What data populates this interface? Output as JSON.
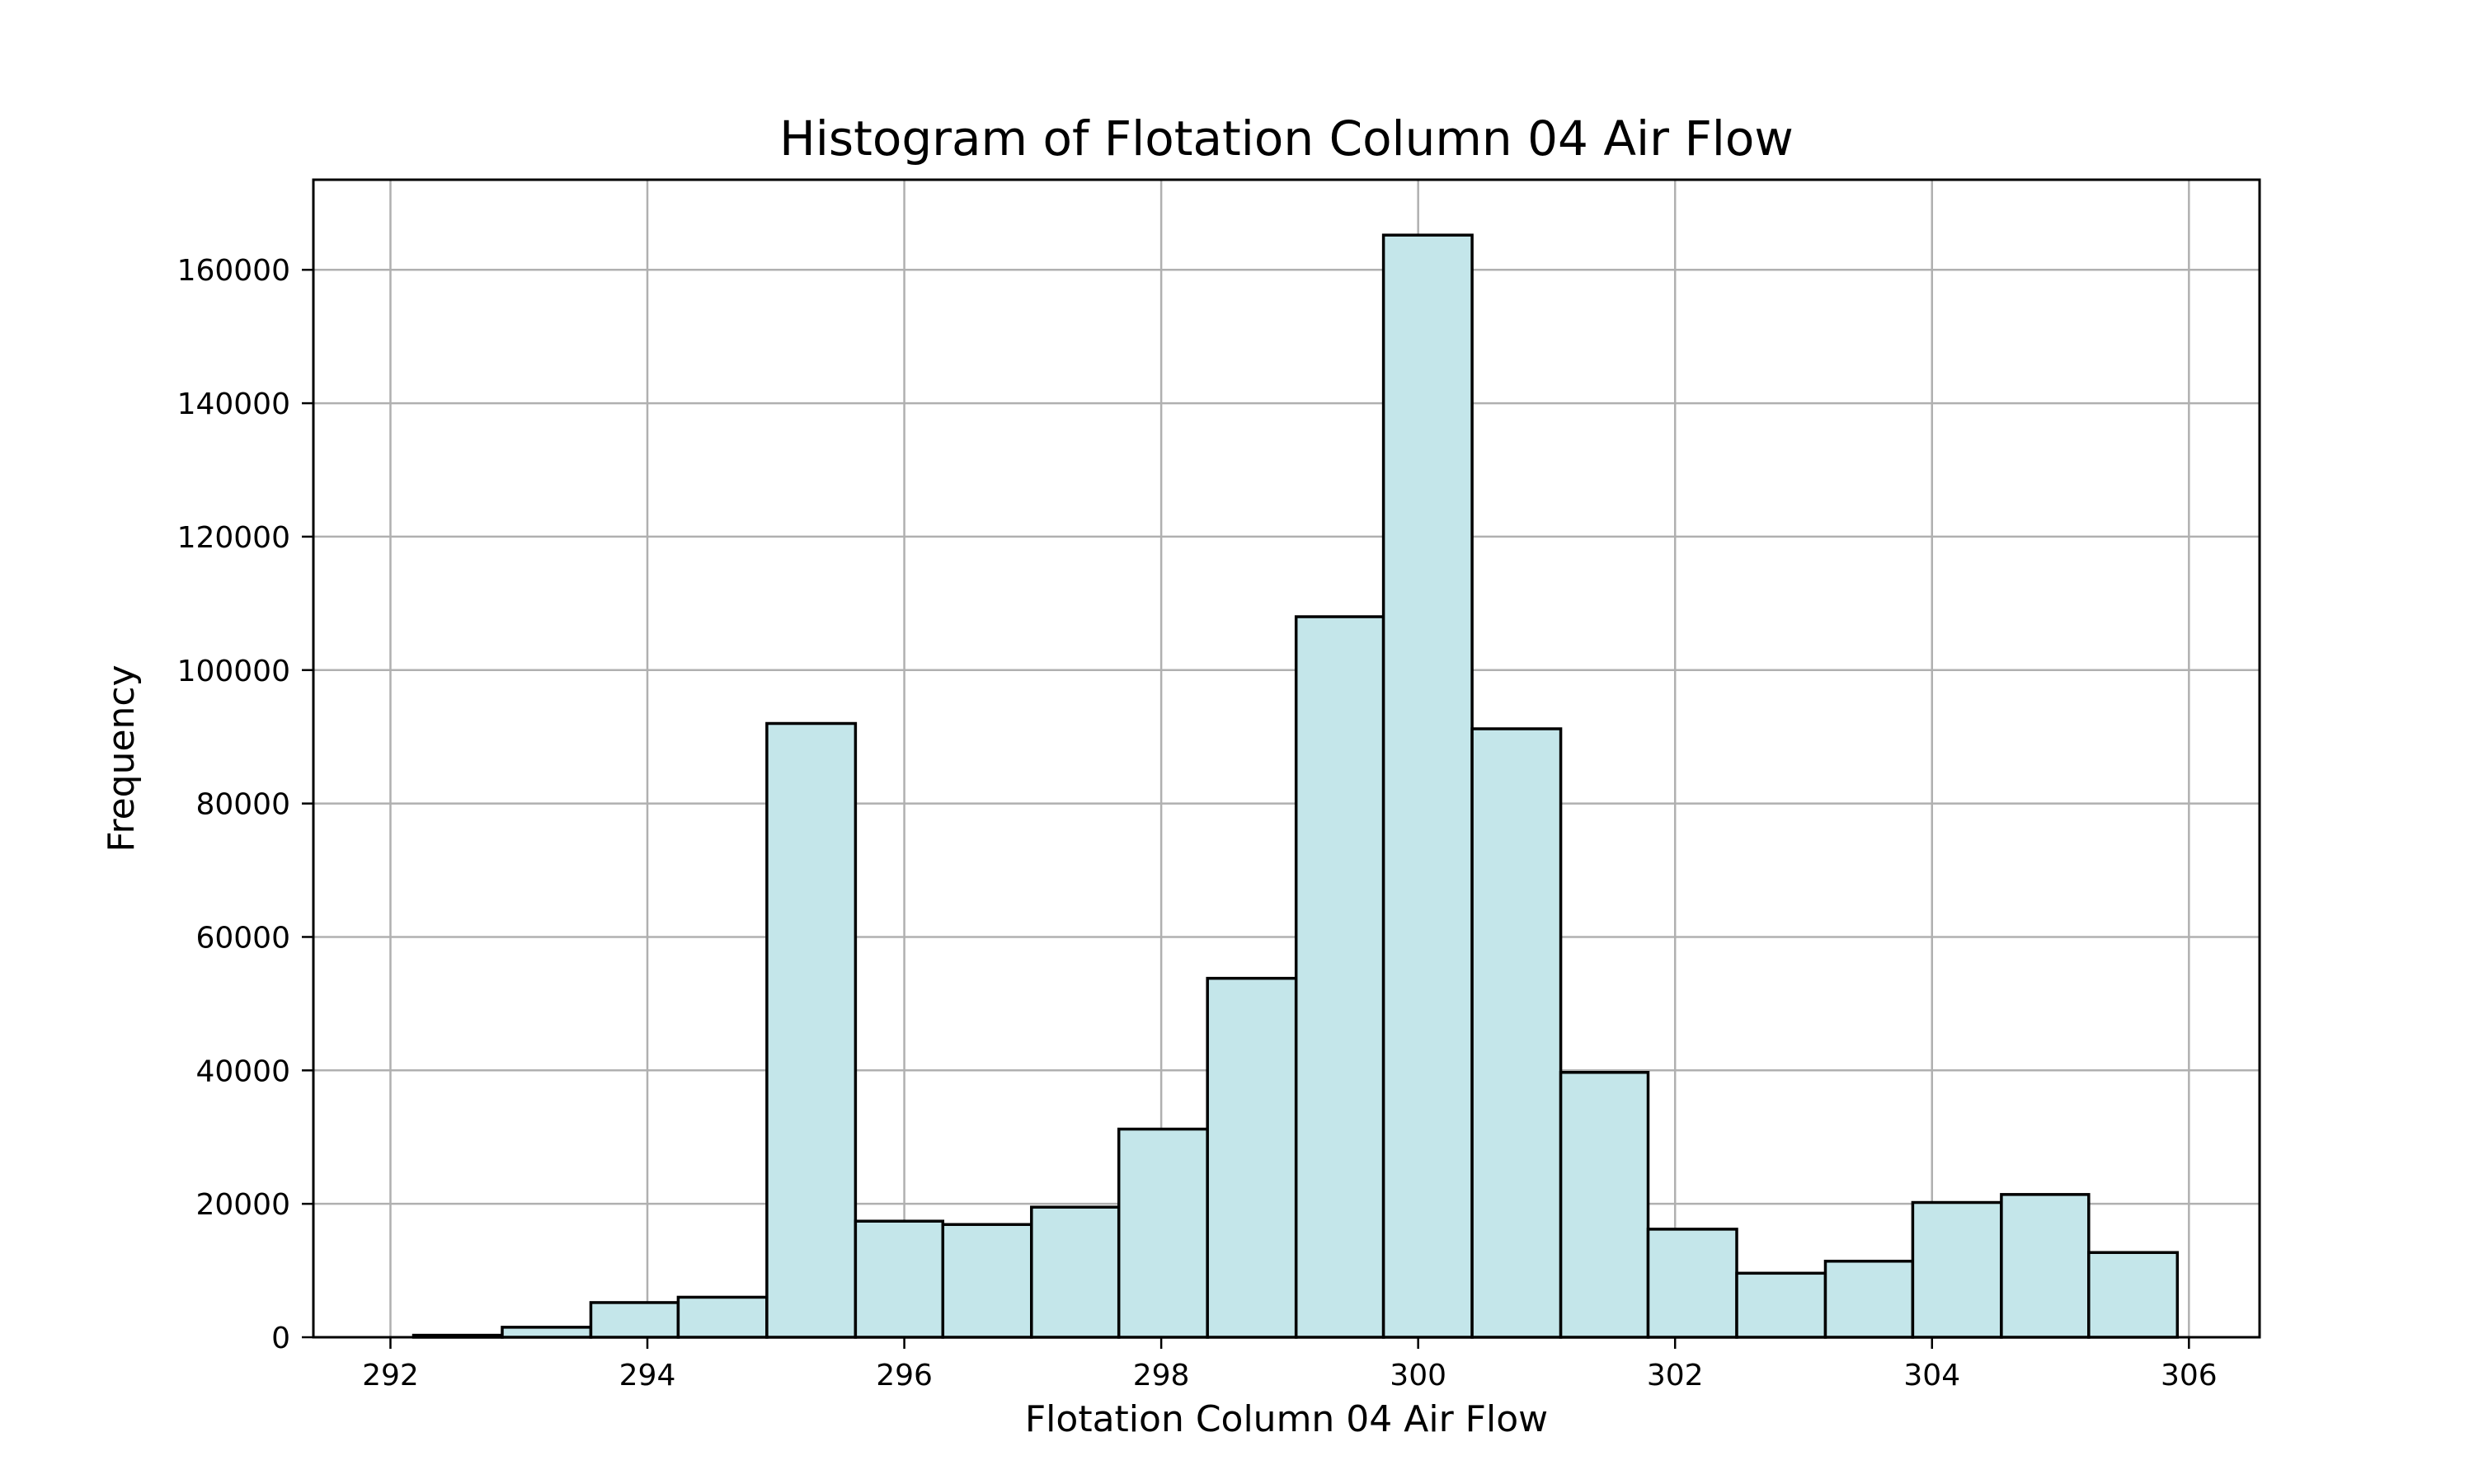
{
  "chart_data": {
    "type": "bar",
    "title": "Histogram of Flotation Column 04 Air Flow",
    "xlabel": "Flotation Column 04 Air Flow",
    "ylabel": "Frequency",
    "xlim": [
      291.4,
      306.55
    ],
    "ylim": [
      0,
      173500
    ],
    "xticks": [
      292,
      294,
      296,
      298,
      300,
      302,
      304,
      306
    ],
    "yticks": [
      0,
      20000,
      40000,
      60000,
      80000,
      100000,
      120000,
      140000,
      160000
    ],
    "grid": true,
    "legend": "none",
    "bar_color": "#c4e6ea",
    "edge_color": "#000000",
    "bins": [
      {
        "start": 292.18,
        "end": 292.87,
        "value": 300
      },
      {
        "start": 292.87,
        "end": 293.56,
        "value": 1500
      },
      {
        "start": 293.56,
        "end": 294.24,
        "value": 5200
      },
      {
        "start": 294.24,
        "end": 294.93,
        "value": 6000
      },
      {
        "start": 294.93,
        "end": 295.62,
        "value": 92000
      },
      {
        "start": 295.62,
        "end": 296.3,
        "value": 17400
      },
      {
        "start": 296.3,
        "end": 296.99,
        "value": 16900
      },
      {
        "start": 296.99,
        "end": 297.67,
        "value": 19500
      },
      {
        "start": 297.67,
        "end": 298.36,
        "value": 31200
      },
      {
        "start": 298.36,
        "end": 299.05,
        "value": 53800
      },
      {
        "start": 299.05,
        "end": 299.73,
        "value": 108000
      },
      {
        "start": 299.73,
        "end": 300.42,
        "value": 165200
      },
      {
        "start": 300.42,
        "end": 301.11,
        "value": 91200
      },
      {
        "start": 301.11,
        "end": 301.79,
        "value": 39700
      },
      {
        "start": 301.79,
        "end": 302.48,
        "value": 16200
      },
      {
        "start": 302.48,
        "end": 303.17,
        "value": 9600
      },
      {
        "start": 303.17,
        "end": 303.85,
        "value": 11400
      },
      {
        "start": 303.85,
        "end": 304.54,
        "value": 20200
      },
      {
        "start": 304.54,
        "end": 305.22,
        "value": 21400
      },
      {
        "start": 305.22,
        "end": 305.91,
        "value": 12700
      }
    ]
  }
}
